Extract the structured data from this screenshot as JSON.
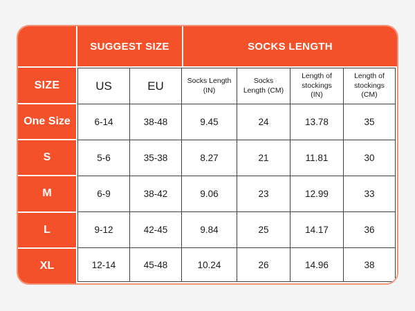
{
  "colors": {
    "accent_orange": "#f4502a",
    "outer_border_salmon": "#f29478",
    "grid_line": "#3f3f3f",
    "page_background": "#f4f4f4",
    "header_text": "#ffffff",
    "cell_text": "#1a1a1a"
  },
  "chart_data": {
    "type": "table",
    "title": "",
    "group_headers": [
      "SUGGEST SIZE",
      "SOCKS LENGTH"
    ],
    "size_header": "SIZE",
    "column_headers": [
      "US",
      "EU",
      "Socks Length (IN)",
      "Socks Length (CM)",
      "Length of stockings (IN)",
      "Length of stockings (CM)"
    ],
    "rows": [
      {
        "size": "One Size",
        "us": "6-14",
        "eu": "38-48",
        "socks_length_in": "9.45",
        "socks_length_cm": "24",
        "stockings_length_in": "13.78",
        "stockings_length_cm": "35"
      },
      {
        "size": "S",
        "us": "5-6",
        "eu": "35-38",
        "socks_length_in": "8.27",
        "socks_length_cm": "21",
        "stockings_length_in": "11.81",
        "stockings_length_cm": "30"
      },
      {
        "size": "M",
        "us": "6-9",
        "eu": "38-42",
        "socks_length_in": "9.06",
        "socks_length_cm": "23",
        "stockings_length_in": "12.99",
        "stockings_length_cm": "33"
      },
      {
        "size": "L",
        "us": "9-12",
        "eu": "42-45",
        "socks_length_in": "9.84",
        "socks_length_cm": "25",
        "stockings_length_in": "14.17",
        "stockings_length_cm": "36"
      },
      {
        "size": "XL",
        "us": "12-14",
        "eu": "45-48",
        "socks_length_in": "10.24",
        "socks_length_cm": "26",
        "stockings_length_in": "14.96",
        "stockings_length_cm": "38"
      }
    ]
  }
}
